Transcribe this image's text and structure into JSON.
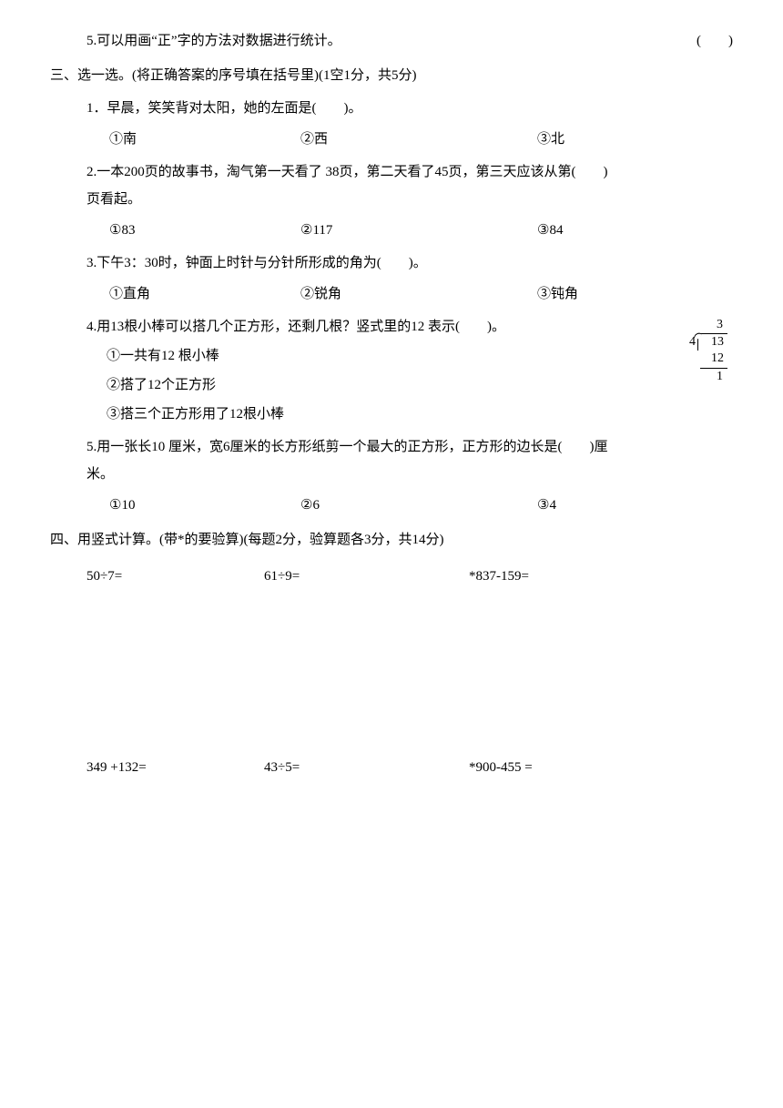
{
  "colors": {
    "text": "#000000",
    "background": "#ffffff"
  },
  "typography": {
    "base_fontsize": 15,
    "line_height": 2,
    "font_family": "SimSun"
  },
  "tf_item": {
    "num": "5.",
    "text": "可以用画“正”字的方法对数据进行统计。",
    "paren": "(　　)"
  },
  "section3": {
    "heading": "三、选一选。(将正确答案的序号填在括号里)(1空1分，共5分)",
    "q1": {
      "text": "1．早晨，笑笑背对太阳，她的左面是(　　)。",
      "opts": {
        "a": "①南",
        "b": "②西",
        "c": "③北"
      }
    },
    "q2": {
      "line1": "2.一本200页的故事书，淘气第一天看了 38页，第二天看了45页，第三天应该从第(　　)",
      "line2": "页看起。",
      "opts": {
        "a": "①83",
        "b": "②117",
        "c": "③84"
      }
    },
    "q3": {
      "text": "3.下午3：30时，钟面上时针与分针所形成的角为(　　)。",
      "opts": {
        "a": "①直角",
        "b": "②锐角",
        "c": "③钝角"
      }
    },
    "q4": {
      "text": "4.用13根小棒可以搭几个正方形，还剩几根？竖式里的12 表示(　　)。",
      "sub": {
        "a": "①一共有12 根小棒",
        "b": "②搭了12个正方形",
        "c": "③搭三个正方形用了12根小棒"
      },
      "division": {
        "quotient": "3",
        "divisor": "4",
        "dividend": "13",
        "sub": "12",
        "remainder": "1"
      }
    },
    "q5": {
      "line1": "5.用一张长10 厘米，宽6厘米的长方形纸剪一个最大的正方形，正方形的边长是(　　)厘",
      "line2": "米。",
      "opts": {
        "a": "①10",
        "b": "②6",
        "c": "③4"
      }
    }
  },
  "section4": {
    "heading": "四、用竖式计算。(带*的要验算)(每题2分，验算题各3分，共14分)",
    "row1": {
      "a": "50÷7=",
      "b": "61÷9=",
      "c": "*837-159="
    },
    "row2": {
      "a": "349 +132=",
      "b": "43÷5=",
      "c": "*900-455 ="
    }
  }
}
